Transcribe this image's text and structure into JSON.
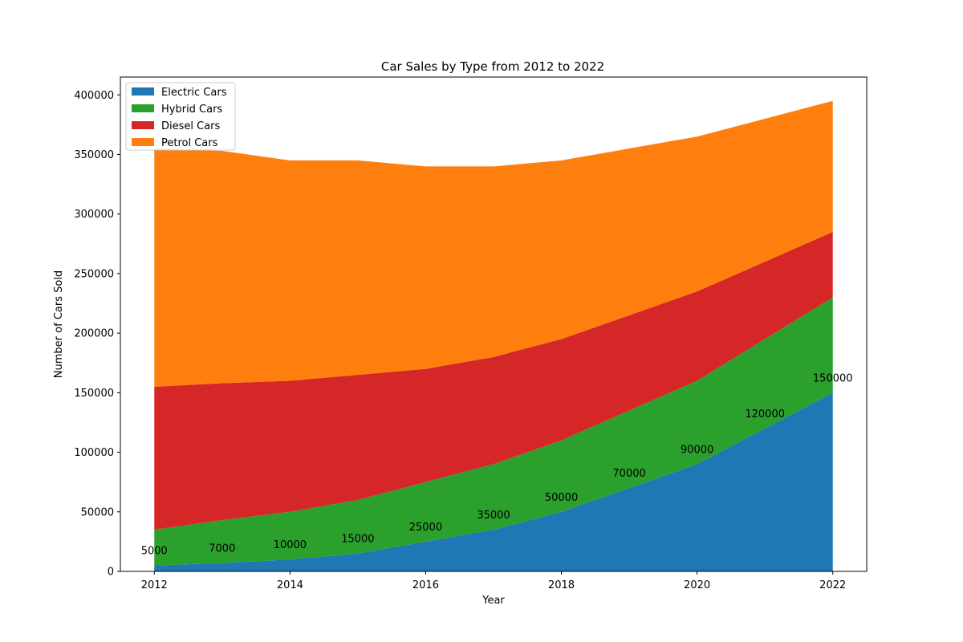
{
  "chart_data": {
    "type": "area",
    "stacked": true,
    "title": "Car Sales by Type from 2012 to 2022",
    "xlabel": "Year",
    "ylabel": "Number of Cars Sold",
    "x": [
      2012,
      2013,
      2014,
      2015,
      2016,
      2017,
      2018,
      2019,
      2020,
      2021,
      2022
    ],
    "xlim": [
      2011.5,
      2022.5
    ],
    "ylim": [
      0,
      415000
    ],
    "x_ticks": [
      "2012",
      "2014",
      "2016",
      "2018",
      "2020",
      "2022"
    ],
    "y_ticks": [
      "0",
      "50000",
      "100000",
      "150000",
      "200000",
      "250000",
      "300000",
      "350000",
      "400000"
    ],
    "grid": false,
    "legend_position": "top-left",
    "series": [
      {
        "name": "Electric Cars",
        "color": "#1f77b4",
        "values": [
          5000,
          7000,
          10000,
          15000,
          25000,
          35000,
          50000,
          70000,
          90000,
          120000,
          150000
        ]
      },
      {
        "name": "Hybrid Cars",
        "color": "#2ca02c",
        "values": [
          30000,
          36000,
          40000,
          45000,
          50000,
          55000,
          60000,
          65000,
          70000,
          75000,
          80000
        ]
      },
      {
        "name": "Diesel Cars",
        "color": "#d62728",
        "values": [
          120000,
          115000,
          110000,
          105000,
          95000,
          90000,
          85000,
          80000,
          75000,
          65000,
          55000
        ]
      },
      {
        "name": "Petrol Cars",
        "color": "#ff7f0e",
        "values": [
          200000,
          195000,
          185000,
          180000,
          170000,
          160000,
          150000,
          140000,
          130000,
          120000,
          110000
        ]
      }
    ],
    "annotations": [
      "5000",
      "7000",
      "10000",
      "15000",
      "25000",
      "35000",
      "50000",
      "70000",
      "90000",
      "120000",
      "150000"
    ]
  }
}
